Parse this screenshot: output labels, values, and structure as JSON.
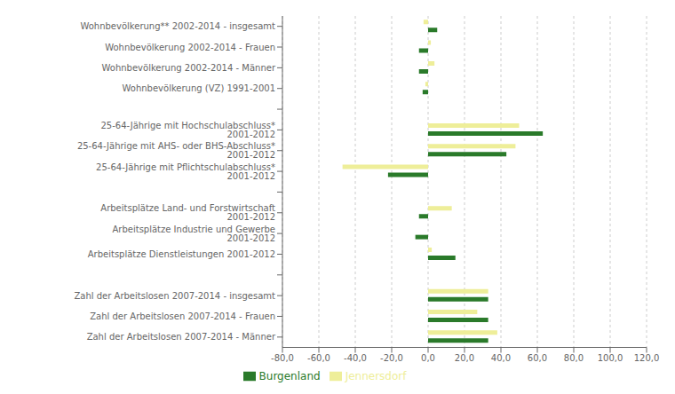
{
  "chart_data": {
    "type": "bar",
    "orientation": "horizontal",
    "categories": [
      "Zahl der Arbeitslosen 2007-2014 - Männer",
      "Zahl der Arbeitslosen 2007-2014 - Frauen",
      "Zahl der Arbeitslosen 2007-2014 - insgesamt",
      null,
      "Arbeitsplätze Dienstleistungen 2001-2012",
      "Arbeitsplätze Industrie und Gewerbe 2001-2012",
      "Arbeitsplätze Land- und Forstwirtschaft 2001-2012",
      null,
      "25-64-Jährige mit Pflichtschulabschluss* 2001-2012",
      "25-64-Jährige mit AHS- oder BHS-Abschluss* 2001-2012",
      "25-64-Jährige mit Hochschulabschluss* 2001-2012",
      null,
      "Wohnbevölkerung (VZ) 1991-2001",
      "Wohnbevölkerung 2002-2014 - Männer",
      "Wohnbevölkerung 2002-2014 - Frauen",
      "Wohnbevölkerung** 2002-2014 - insgesamt"
    ],
    "series": [
      {
        "name": "Jennersdorf",
        "color": "#eeee99",
        "values": [
          38.0,
          27.0,
          33.0,
          0,
          2.0,
          0,
          13.0,
          0,
          -47.0,
          48.0,
          50.0,
          0,
          -1.5,
          3.5,
          1.5,
          -2.5
        ]
      },
      {
        "name": "Burgenland",
        "color": "#2a7a2a",
        "values": [
          33.0,
          33.0,
          33.0,
          0,
          15.0,
          -7.0,
          -5.0,
          0,
          -22.0,
          43.0,
          63.0,
          0,
          -3.0,
          -5.0,
          -5.0,
          5.0
        ]
      }
    ],
    "xlim": [
      -80,
      120
    ],
    "xticks": [
      {
        "value": -80,
        "label": "-80,0"
      },
      {
        "value": -60,
        "label": "-60,0"
      },
      {
        "value": -40,
        "label": "-40,0"
      },
      {
        "value": -20,
        "label": "-20,0"
      },
      {
        "value": 0,
        "label": "0,0"
      },
      {
        "value": 20,
        "label": "20,0"
      },
      {
        "value": 40,
        "label": "40,0"
      },
      {
        "value": 60,
        "label": "60,0"
      },
      {
        "value": 80,
        "label": "80,0"
      },
      {
        "value": 100,
        "label": "100,0"
      },
      {
        "value": 120,
        "label": "120,0"
      }
    ],
    "grid": true,
    "legend": "bottom"
  }
}
